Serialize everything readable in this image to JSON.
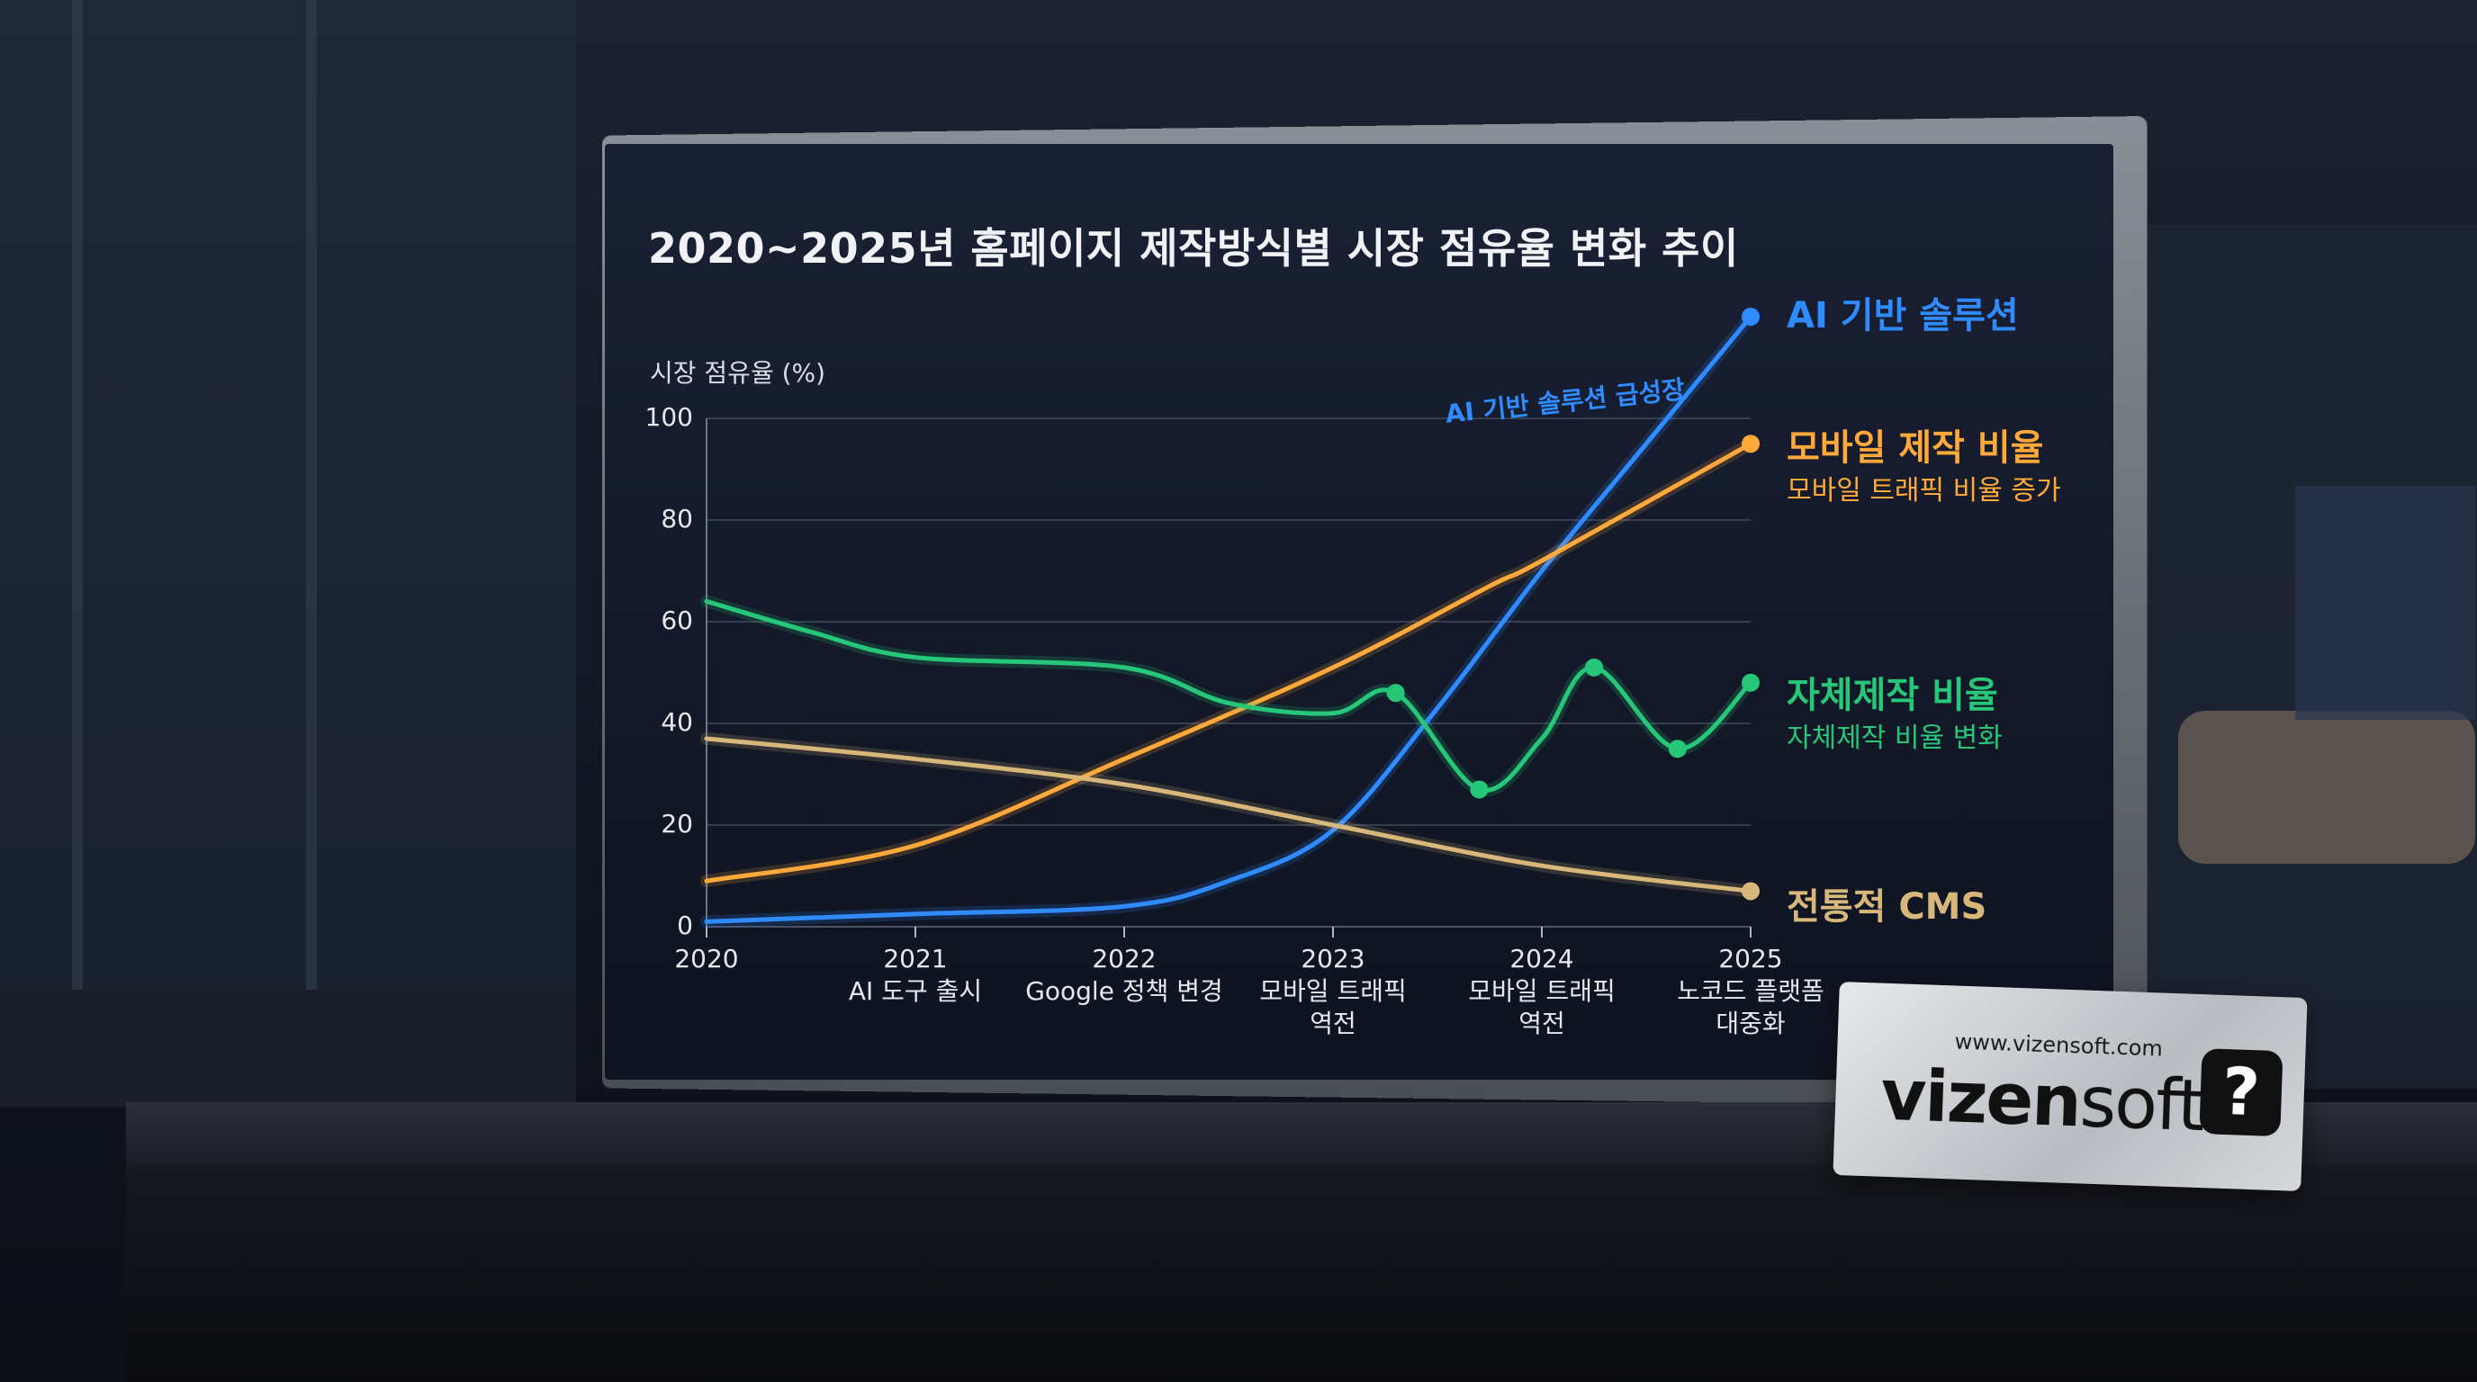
{
  "chart_data": {
    "type": "line",
    "title": "2020~2025년 홈페이지 제작방식별 시장 점유율 변화 추이",
    "ylabel": "시장 점유율 (%)",
    "ylim": [
      0,
      100
    ],
    "yticks": [
      "0",
      "20",
      "40",
      "60",
      "80",
      "100"
    ],
    "x_categories": [
      {
        "year": "2020",
        "note": ""
      },
      {
        "year": "2021",
        "note": "AI 도구 출시"
      },
      {
        "year": "2022",
        "note": "Google 정책 변경"
      },
      {
        "year": "2023",
        "note": "모바일 트래픽\n역전"
      },
      {
        "year": "2024",
        "note": "모바일 트래픽\n역전"
      },
      {
        "year": "2025",
        "note": "노코드 플랫폼\n대중화"
      }
    ],
    "grid": true,
    "series": [
      {
        "name": "AI 기반 솔루션",
        "color": "#2f8bff",
        "points": [
          [
            2020,
            1
          ],
          [
            2021,
            2.5
          ],
          [
            2022,
            4
          ],
          [
            2022.5,
            9
          ],
          [
            2023,
            19
          ],
          [
            2023.5,
            43
          ],
          [
            2024,
            70
          ],
          [
            2024.5,
            95
          ],
          [
            2025,
            120
          ]
        ],
        "annotation": "AI 기반 솔루션 급성장"
      },
      {
        "name": "모바일 제작 비율",
        "color": "#ffa93b",
        "subtitle": "모바일 트래픽 비율 증가",
        "points": [
          [
            2020,
            9
          ],
          [
            2021,
            16
          ],
          [
            2022,
            33
          ],
          [
            2023,
            51
          ],
          [
            2023.75,
            67
          ],
          [
            2024,
            72
          ],
          [
            2025,
            95
          ]
        ]
      },
      {
        "name": "자체제작 비율",
        "color": "#27c77a",
        "subtitle": "자체제작 비율 변화",
        "points": [
          [
            2020,
            64
          ],
          [
            2020.5,
            58
          ],
          [
            2021,
            53
          ],
          [
            2022,
            51
          ],
          [
            2022.5,
            44
          ],
          [
            2023,
            42
          ],
          [
            2023.3,
            46
          ],
          [
            2023.7,
            27
          ],
          [
            2024,
            37
          ],
          [
            2024.25,
            51
          ],
          [
            2024.65,
            35
          ],
          [
            2025,
            48
          ]
        ]
      },
      {
        "name": "전통적 CMS",
        "color": "#d8b77a",
        "points": [
          [
            2020,
            37
          ],
          [
            2021,
            33
          ],
          [
            2022,
            28
          ],
          [
            2023,
            20
          ],
          [
            2024,
            12
          ],
          [
            2025,
            7
          ]
        ]
      }
    ]
  },
  "sign": {
    "url": "www.vizensoft.com",
    "brand_bold": "vizen",
    "brand_thin": "soft",
    "icon": "question-bubble-icon"
  }
}
